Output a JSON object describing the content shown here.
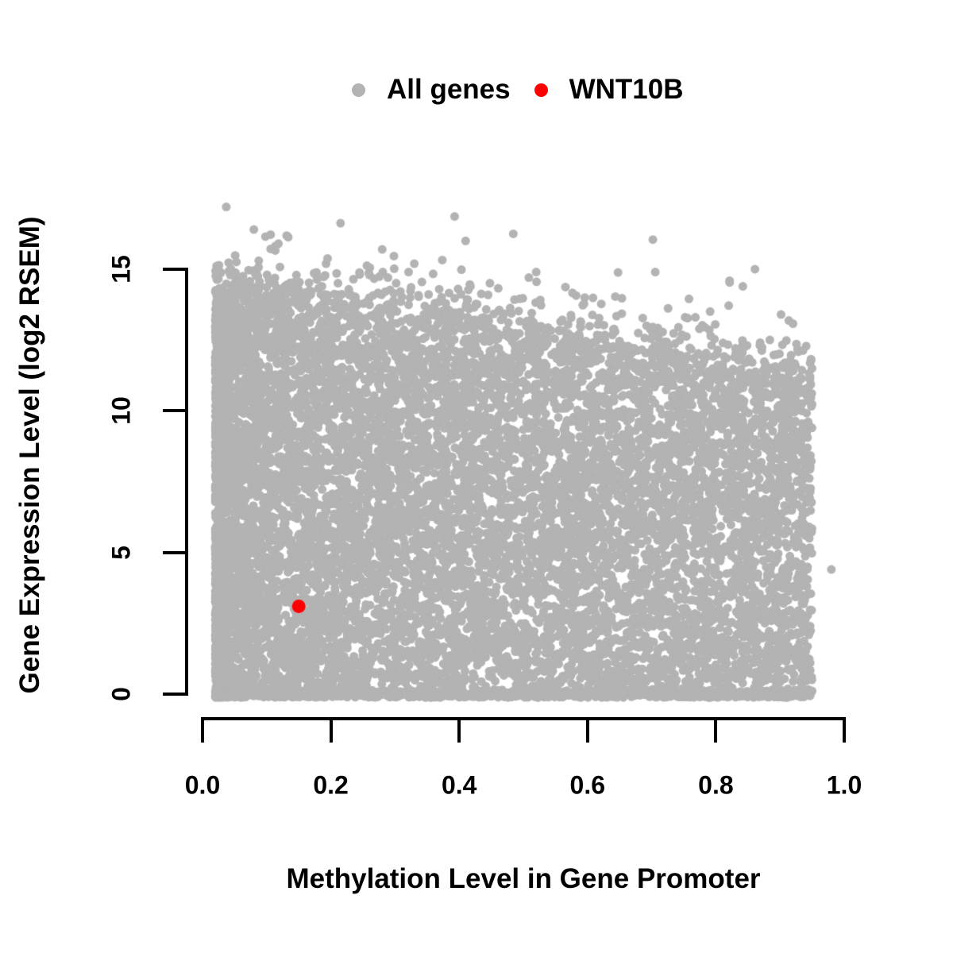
{
  "chart_data": {
    "type": "scatter",
    "title": "",
    "xlabel": "Methylation Level in Gene Promoter",
    "ylabel": "Gene Expression Level (log2 RSEM)",
    "xlim": [
      0,
      1.0
    ],
    "ylim": [
      0,
      17.5
    ],
    "x_ticks": [
      0.0,
      0.2,
      0.4,
      0.6,
      0.8,
      1.0
    ],
    "x_tick_labels": [
      "0.0",
      "0.2",
      "0.4",
      "0.6",
      "0.8",
      "1.0"
    ],
    "y_ticks": [
      0,
      5,
      10,
      15
    ],
    "y_tick_labels": [
      "0",
      "5",
      "10",
      "15"
    ],
    "grid": false,
    "legend_position": "top-center",
    "background_color": "#ffffff",
    "axis_color": "#000000",
    "series": [
      {
        "name": "All genes",
        "color": "#b3b3b3",
        "marker": "filled-circle",
        "marker_radius_px": 5.5,
        "description": "Dense cloud of ~20000 genes; methylation 0.02-0.95; expression 0 up to an upper boundary that declines from ~15 at low methylation to ~11.5 at high methylation; dense band at expression 0; sparse outliers up to 17.2."
      },
      {
        "name": "WNT10B",
        "color": "#ff0000",
        "marker": "filled-circle",
        "marker_radius_px": 8.5,
        "points": [
          [
            0.15,
            3.1
          ]
        ]
      }
    ],
    "generation": {
      "seed": 42,
      "n_cloud": 11000,
      "n_zero_band": 1100,
      "n_outliers": 140,
      "x_min": 0.02,
      "x_max": 0.95,
      "upper_boundary": "y = 14.9 - 3.5*x + N(0,0.35)",
      "pinned_points": [
        [
          0.037,
          17.2
        ],
        [
          0.08,
          16.4
        ],
        [
          0.28,
          15.7
        ],
        [
          0.41,
          16.0
        ],
        [
          0.52,
          14.9
        ],
        [
          0.98,
          4.4
        ]
      ]
    }
  },
  "legend": {
    "items": [
      {
        "label": "All genes",
        "color": "#b3b3b3"
      },
      {
        "label": "WNT10B",
        "color": "#ff0000"
      }
    ]
  },
  "axes": {
    "x_title": "Methylation Level in Gene Promoter",
    "y_title": "Gene Expression Level (log2 RSEM)"
  }
}
